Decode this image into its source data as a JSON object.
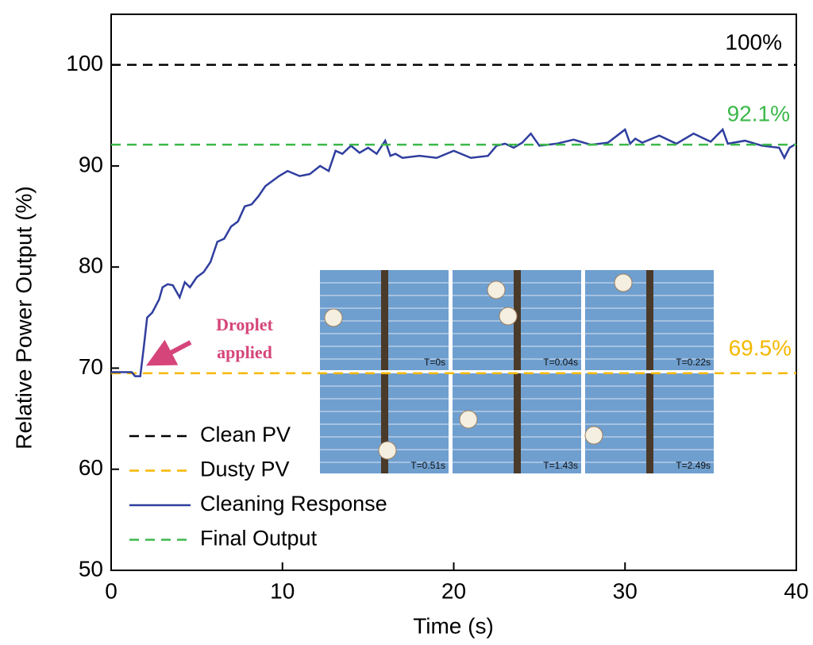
{
  "chart_data": {
    "type": "line",
    "xlabel": "Time (s)",
    "ylabel": "Relative Power Output (%)",
    "xlim": [
      0,
      40
    ],
    "ylim": [
      50,
      105
    ],
    "xticks": [
      0,
      10,
      20,
      30,
      40
    ],
    "yticks": [
      50,
      60,
      70,
      80,
      90,
      100
    ],
    "legend_position": "lower left",
    "series": [
      {
        "name": "Clean PV",
        "color": "#000000",
        "linestyle": "dashed",
        "x": [
          0,
          40
        ],
        "values": [
          100,
          100
        ]
      },
      {
        "name": "Dusty PV",
        "color": "#f5b800",
        "linestyle": "dashed",
        "x": [
          0,
          40
        ],
        "values": [
          69.5,
          69.5
        ]
      },
      {
        "name": "Cleaning Response",
        "color": "#2f3e9e",
        "linestyle": "solid",
        "x": [
          0,
          1.2,
          1.4,
          1.7,
          1.9,
          2.1,
          2.4,
          2.8,
          3.0,
          3.3,
          3.6,
          4.0,
          4.3,
          4.6,
          5.0,
          5.4,
          5.8,
          6.2,
          6.6,
          7.0,
          7.4,
          7.8,
          8.2,
          8.6,
          9.0,
          9.4,
          9.8,
          10.3,
          11,
          11.6,
          12.2,
          12.7,
          13.1,
          13.5,
          14,
          14.5,
          15,
          15.5,
          16,
          16.3,
          16.6,
          17,
          18,
          19,
          20,
          21,
          22,
          22.5,
          23,
          23.5,
          24,
          24.5,
          25,
          26,
          27,
          28,
          29,
          30,
          30.3,
          30.6,
          31,
          32,
          33,
          34,
          35,
          35.7,
          36,
          37,
          38,
          39,
          39.3,
          39.6,
          40
        ],
        "values": [
          69.6,
          69.6,
          69.2,
          69.2,
          72,
          75,
          75.5,
          76.8,
          78,
          78.3,
          78.2,
          77,
          78.5,
          78,
          79,
          79.5,
          80.5,
          82.5,
          82.8,
          84,
          84.5,
          86,
          86.2,
          87,
          88,
          88.5,
          89,
          89.5,
          89,
          89.2,
          90,
          89.5,
          91.5,
          91.2,
          92,
          91.3,
          91.8,
          91.2,
          92.5,
          91,
          91.2,
          90.8,
          91,
          90.8,
          91.5,
          90.8,
          91,
          92,
          92.2,
          91.8,
          92.3,
          93.2,
          92,
          92.2,
          92.6,
          92.1,
          92.3,
          93.6,
          92.2,
          92.7,
          92.3,
          93,
          92.2,
          93.2,
          92.4,
          93.6,
          92.2,
          92.5,
          92,
          91.8,
          90.8,
          91.8,
          92.2
        ]
      },
      {
        "name": "Final Output",
        "color": "#3cb84a",
        "linestyle": "dashed",
        "x": [
          0,
          40
        ],
        "values": [
          92.1,
          92.1
        ]
      }
    ],
    "annotations": [
      "100%",
      "92.1%",
      "69.5%",
      "Droplet",
      "applied"
    ],
    "inset_labels": [
      "T=0s",
      "T=0.04s",
      "T=0.22s",
      "T=0.51s",
      "T=1.43s",
      "T=2.49s"
    ]
  }
}
